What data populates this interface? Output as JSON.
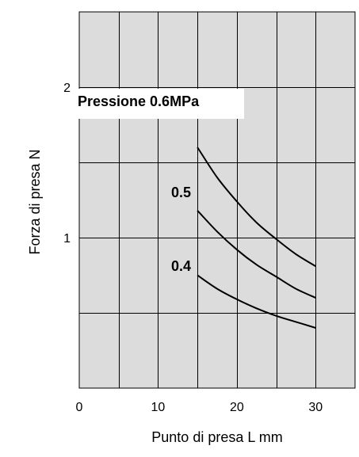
{
  "chart_data": {
    "type": "line",
    "title": "",
    "xlabel": "Punto di presa L mm",
    "ylabel": "Forza di presa  N",
    "xlim": [
      0,
      35
    ],
    "ylim": [
      0,
      2.5
    ],
    "x_ticks": [
      0,
      10,
      20,
      30
    ],
    "x_tick_labels": [
      "0",
      "10",
      "20",
      "30"
    ],
    "y_ticks": [
      1,
      2
    ],
    "y_tick_labels": [
      "1",
      "2"
    ],
    "grid": true,
    "plot_background": "#dcdcdc",
    "line_color": "#000000",
    "series": [
      {
        "name": "Pressione 0.6MPa",
        "x": [
          15,
          17.5,
          20,
          22.5,
          25,
          27.5,
          30
        ],
        "y": [
          1.6,
          1.4,
          1.24,
          1.1,
          0.99,
          0.89,
          0.81
        ]
      },
      {
        "name": "0.5",
        "x": [
          15,
          17.5,
          20,
          22.5,
          25,
          27.5,
          30
        ],
        "y": [
          1.18,
          1.04,
          0.92,
          0.82,
          0.74,
          0.66,
          0.6
        ]
      },
      {
        "name": "0.4",
        "x": [
          15,
          17.5,
          20,
          22.5,
          25,
          27.5,
          30
        ],
        "y": [
          0.75,
          0.66,
          0.59,
          0.53,
          0.48,
          0.44,
          0.4
        ]
      }
    ]
  }
}
